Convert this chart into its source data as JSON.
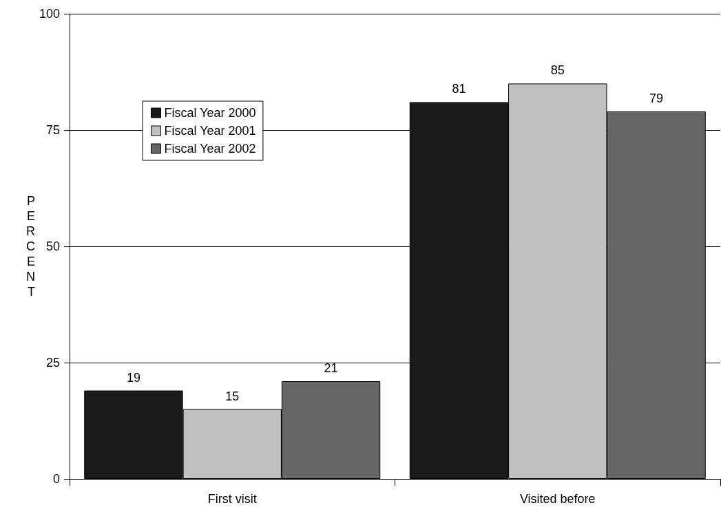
{
  "chart_data": {
    "type": "bar",
    "ylabel": "PERCENT",
    "categories": [
      "First visit",
      "Visited before"
    ],
    "series": [
      {
        "name": "Fiscal Year 2000",
        "color": "#1a1a1a",
        "values": [
          19,
          81
        ]
      },
      {
        "name": "Fiscal Year 2001",
        "color": "#c0c0c0",
        "values": [
          15,
          85
        ]
      },
      {
        "name": "Fiscal Year 2002",
        "color": "#666666",
        "values": [
          21,
          79
        ]
      }
    ],
    "ylim": [
      0,
      100
    ],
    "yticks": [
      0,
      25,
      50,
      75,
      100
    ],
    "grid": "y",
    "legend": "top left",
    "data_labels": true
  }
}
